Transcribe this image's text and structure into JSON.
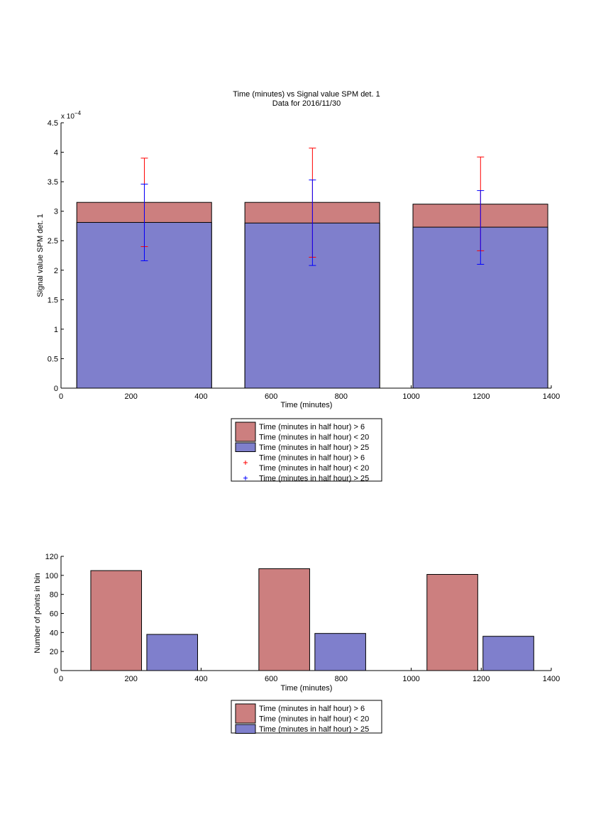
{
  "chart_data": [
    {
      "type": "bar",
      "title": "Time (minutes) vs Signal value SPM det. 1",
      "subtitle": "Data for 2016/11/30",
      "xlabel": "Time (minutes)",
      "ylabel": "Signal value SPM det. 1",
      "exponent_label": "x 10",
      "exponent_power": "−4",
      "xlim": [
        0,
        1400
      ],
      "ylim": [
        0,
        4.5
      ],
      "xticks": [
        "0",
        "200",
        "400",
        "600",
        "800",
        "1000",
        "1200",
        "1400"
      ],
      "yticks": [
        "0",
        "0.5",
        "1",
        "1.5",
        "2",
        "2.5",
        "3",
        "3.5",
        "4",
        "4.5"
      ],
      "grid": false,
      "legend_position": "below",
      "bars": {
        "x_ranges": [
          [
            45,
            430
          ],
          [
            525,
            910
          ],
          [
            1005,
            1390
          ]
        ],
        "series": [
          {
            "name": "Time (minutes in half hour) > 6\nTime (minutes in half hour) < 20",
            "color": "#cc7f7f",
            "values": [
              3.15,
              3.15,
              3.12
            ]
          },
          {
            "name": "Time (minutes in half hour) > 25",
            "color": "#7f7fcc",
            "values": [
              2.81,
              2.8,
              2.73
            ]
          }
        ]
      },
      "errorbars": [
        {
          "name": "Time (minutes in half hour) > 6\nTime (minutes in half hour) < 20",
          "color": "#ff0000",
          "x": [
            238,
            718,
            1198
          ],
          "low": [
            2.4,
            2.22,
            2.33
          ],
          "high": [
            3.9,
            4.07,
            3.92
          ]
        },
        {
          "name": "Time (minutes in half hour) > 25",
          "color": "#0000ff",
          "x": [
            238,
            718,
            1198
          ],
          "low": [
            2.16,
            2.08,
            2.1
          ],
          "high": [
            3.46,
            3.53,
            3.35
          ]
        }
      ],
      "legend": [
        {
          "kind": "patch",
          "color": "#cc7f7f",
          "lines": [
            "Time (minutes in half hour) > 6",
            "Time (minutes in half hour) < 20"
          ]
        },
        {
          "kind": "patch",
          "color": "#7f7fcc",
          "lines": [
            "Time (minutes in half hour) > 25"
          ]
        },
        {
          "kind": "marker",
          "color": "#ff0000",
          "lines": [
            "Time (minutes in half hour) > 6",
            "Time (minutes in half hour) < 20"
          ]
        },
        {
          "kind": "marker",
          "color": "#0000ff",
          "lines": [
            "Time (minutes in half hour) > 25"
          ]
        }
      ]
    },
    {
      "type": "bar",
      "title": "",
      "xlabel": "Time (minutes)",
      "ylabel": "Number of points in bin",
      "xlim": [
        0,
        1400
      ],
      "ylim": [
        0,
        120
      ],
      "xticks": [
        "0",
        "200",
        "400",
        "600",
        "800",
        "1000",
        "1200",
        "1400"
      ],
      "yticks": [
        "0",
        "20",
        "40",
        "60",
        "80",
        "100",
        "120"
      ],
      "grid": false,
      "legend_position": "below",
      "series": [
        {
          "name": "Time (minutes in half hour) > 6\nTime (minutes in half hour) < 20",
          "color": "#cc7f7f",
          "x_ranges": [
            [
              85,
              230
            ],
            [
              565,
              710
            ],
            [
              1045,
              1190
            ]
          ],
          "values": [
            105,
            107,
            101
          ]
        },
        {
          "name": "Time (minutes in half hour) > 25",
          "color": "#7f7fcc",
          "x_ranges": [
            [
              245,
              390
            ],
            [
              725,
              870
            ],
            [
              1205,
              1350
            ]
          ],
          "values": [
            38,
            39,
            36
          ]
        }
      ],
      "legend": [
        {
          "kind": "patch",
          "color": "#cc7f7f",
          "lines": [
            "Time (minutes in half hour) > 6",
            "Time (minutes in half hour) < 20"
          ]
        },
        {
          "kind": "patch",
          "color": "#7f7fcc",
          "lines": [
            "Time (minutes in half hour) > 25"
          ]
        }
      ]
    }
  ]
}
